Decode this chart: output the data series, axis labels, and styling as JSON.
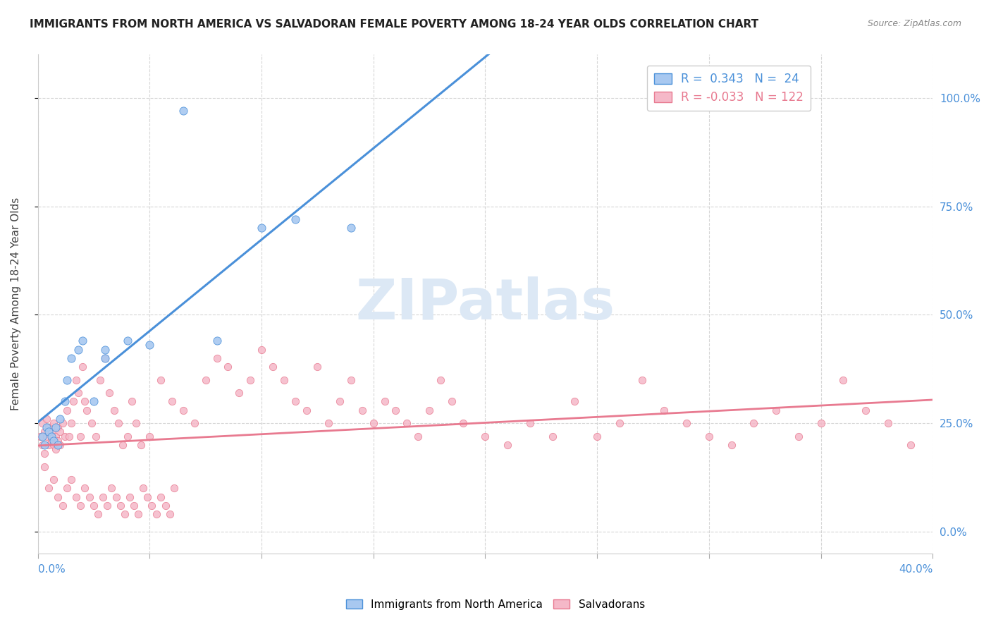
{
  "title": "IMMIGRANTS FROM NORTH AMERICA VS SALVADORAN FEMALE POVERTY AMONG 18-24 YEAR OLDS CORRELATION CHART",
  "source": "Source: ZipAtlas.com",
  "ylabel": "Female Poverty Among 18-24 Year Olds",
  "right_yticklabels": [
    "0.0%",
    "25.0%",
    "50.0%",
    "75.0%",
    "100.0%"
  ],
  "blue_R": 0.343,
  "blue_N": 24,
  "pink_R": -0.033,
  "pink_N": 122,
  "blue_color": "#a8c8f0",
  "pink_color": "#f5b8c8",
  "blue_line_color": "#4a90d9",
  "pink_line_color": "#e87a90",
  "watermark": "ZIPatlas",
  "watermark_color": "#dce8f5",
  "legend_label_blue": "Immigrants from North America",
  "legend_label_pink": "Salvadorans",
  "blue_scatter_x": [
    0.002,
    0.003,
    0.004,
    0.005,
    0.006,
    0.007,
    0.008,
    0.009,
    0.01,
    0.012,
    0.013,
    0.015,
    0.018,
    0.02,
    0.025,
    0.03,
    0.065,
    0.1,
    0.115,
    0.14,
    0.03,
    0.04,
    0.05,
    0.08
  ],
  "blue_scatter_y": [
    0.22,
    0.2,
    0.24,
    0.23,
    0.22,
    0.21,
    0.24,
    0.2,
    0.26,
    0.3,
    0.35,
    0.4,
    0.42,
    0.44,
    0.3,
    0.4,
    0.97,
    0.7,
    0.72,
    0.7,
    0.42,
    0.44,
    0.43,
    0.44
  ],
  "pink_scatter_x": [
    0.001,
    0.002,
    0.002,
    0.003,
    0.003,
    0.004,
    0.004,
    0.005,
    0.005,
    0.006,
    0.006,
    0.007,
    0.007,
    0.008,
    0.008,
    0.009,
    0.009,
    0.01,
    0.01,
    0.011,
    0.012,
    0.013,
    0.014,
    0.015,
    0.016,
    0.017,
    0.018,
    0.019,
    0.02,
    0.021,
    0.022,
    0.024,
    0.026,
    0.028,
    0.03,
    0.032,
    0.034,
    0.036,
    0.038,
    0.04,
    0.042,
    0.044,
    0.046,
    0.05,
    0.055,
    0.06,
    0.065,
    0.07,
    0.075,
    0.08,
    0.085,
    0.09,
    0.095,
    0.1,
    0.105,
    0.11,
    0.115,
    0.12,
    0.125,
    0.13,
    0.135,
    0.14,
    0.145,
    0.15,
    0.155,
    0.16,
    0.165,
    0.17,
    0.175,
    0.18,
    0.185,
    0.19,
    0.2,
    0.21,
    0.22,
    0.23,
    0.24,
    0.25,
    0.26,
    0.27,
    0.28,
    0.29,
    0.3,
    0.31,
    0.32,
    0.33,
    0.34,
    0.35,
    0.36,
    0.37,
    0.38,
    0.39,
    0.003,
    0.005,
    0.007,
    0.009,
    0.011,
    0.013,
    0.015,
    0.017,
    0.019,
    0.021,
    0.023,
    0.025,
    0.027,
    0.029,
    0.031,
    0.033,
    0.035,
    0.037,
    0.039,
    0.041,
    0.043,
    0.045,
    0.047,
    0.049,
    0.051,
    0.053,
    0.055,
    0.057,
    0.059,
    0.061,
    0.063,
    0.065
  ],
  "pink_scatter_y": [
    0.22,
    0.2,
    0.25,
    0.18,
    0.23,
    0.22,
    0.26,
    0.2,
    0.24,
    0.21,
    0.23,
    0.2,
    0.25,
    0.19,
    0.22,
    0.21,
    0.24,
    0.23,
    0.2,
    0.25,
    0.22,
    0.28,
    0.22,
    0.25,
    0.3,
    0.35,
    0.32,
    0.22,
    0.38,
    0.3,
    0.28,
    0.25,
    0.22,
    0.35,
    0.4,
    0.32,
    0.28,
    0.25,
    0.2,
    0.22,
    0.3,
    0.25,
    0.2,
    0.22,
    0.35,
    0.3,
    0.28,
    0.25,
    0.35,
    0.4,
    0.38,
    0.32,
    0.35,
    0.42,
    0.38,
    0.35,
    0.3,
    0.28,
    0.38,
    0.25,
    0.3,
    0.35,
    0.28,
    0.25,
    0.3,
    0.28,
    0.25,
    0.22,
    0.28,
    0.35,
    0.3,
    0.25,
    0.22,
    0.2,
    0.25,
    0.22,
    0.3,
    0.22,
    0.25,
    0.35,
    0.28,
    0.25,
    0.22,
    0.2,
    0.25,
    0.28,
    0.22,
    0.25,
    0.35,
    0.28,
    0.25,
    0.2,
    0.15,
    0.1,
    0.12,
    0.08,
    0.06,
    0.1,
    0.12,
    0.08,
    0.06,
    0.1,
    0.08,
    0.06,
    0.04,
    0.08,
    0.06,
    0.1,
    0.08,
    0.06,
    0.04,
    0.08,
    0.06,
    0.04,
    0.1,
    0.08,
    0.06,
    0.04,
    0.08,
    0.06,
    0.04,
    0.1,
    0.08,
    0.04
  ]
}
